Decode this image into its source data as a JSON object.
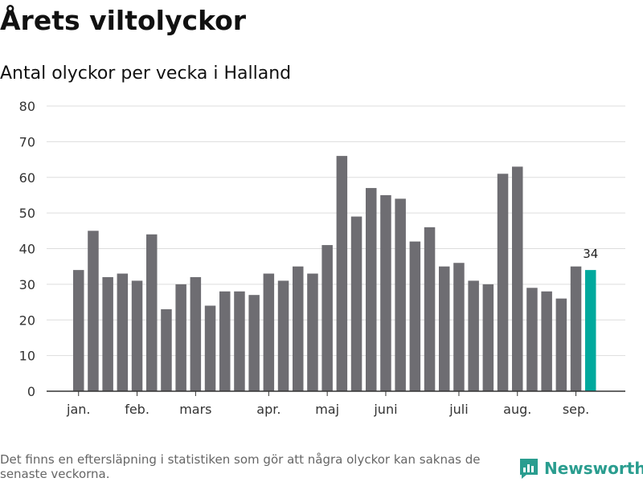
{
  "title": "Årets viltolyckor",
  "subtitle": "Antal olyckor per vecka i Halland",
  "footnote": "Det finns en eftersläpning i statistiken som gör att några olyckor kan saknas de senaste veckorna.",
  "brand": {
    "name": "Newsworthy",
    "icon": "bar-chart-logo-icon"
  },
  "colors": {
    "bar": "#6e6d72",
    "highlight": "#00a99d",
    "grid": "#dddddd",
    "axis": "#333333",
    "brand": "#2a9d8f"
  },
  "chart_data": {
    "type": "bar",
    "title": "Antal olyckor per vecka i Halland",
    "xlabel": "",
    "ylabel": "",
    "ylim": [
      0,
      80
    ],
    "yticks": [
      0,
      10,
      20,
      30,
      40,
      50,
      60,
      70,
      80
    ],
    "grid": true,
    "legend": "none",
    "month_labels": [
      {
        "label": "jan.",
        "week": 1
      },
      {
        "label": "feb.",
        "week": 5
      },
      {
        "label": "mars",
        "week": 9
      },
      {
        "label": "apr.",
        "week": 14
      },
      {
        "label": "maj",
        "week": 18
      },
      {
        "label": "juni",
        "week": 22
      },
      {
        "label": "juli",
        "week": 27
      },
      {
        "label": "aug.",
        "week": 31
      },
      {
        "label": "sep.",
        "week": 35
      }
    ],
    "weeks": [
      1,
      2,
      3,
      4,
      5,
      6,
      7,
      8,
      9,
      10,
      11,
      12,
      13,
      14,
      15,
      16,
      17,
      18,
      19,
      20,
      21,
      22,
      23,
      24,
      25,
      26,
      27,
      28,
      29,
      30,
      31,
      32,
      33,
      34,
      35,
      36
    ],
    "values": [
      34,
      45,
      32,
      33,
      31,
      44,
      23,
      30,
      32,
      24,
      28,
      28,
      27,
      33,
      31,
      35,
      33,
      41,
      66,
      49,
      57,
      55,
      54,
      42,
      46,
      35,
      36,
      31,
      30,
      61,
      63,
      29,
      28,
      26,
      35,
      34
    ],
    "highlight_index": 35,
    "highlight_label": "34"
  }
}
